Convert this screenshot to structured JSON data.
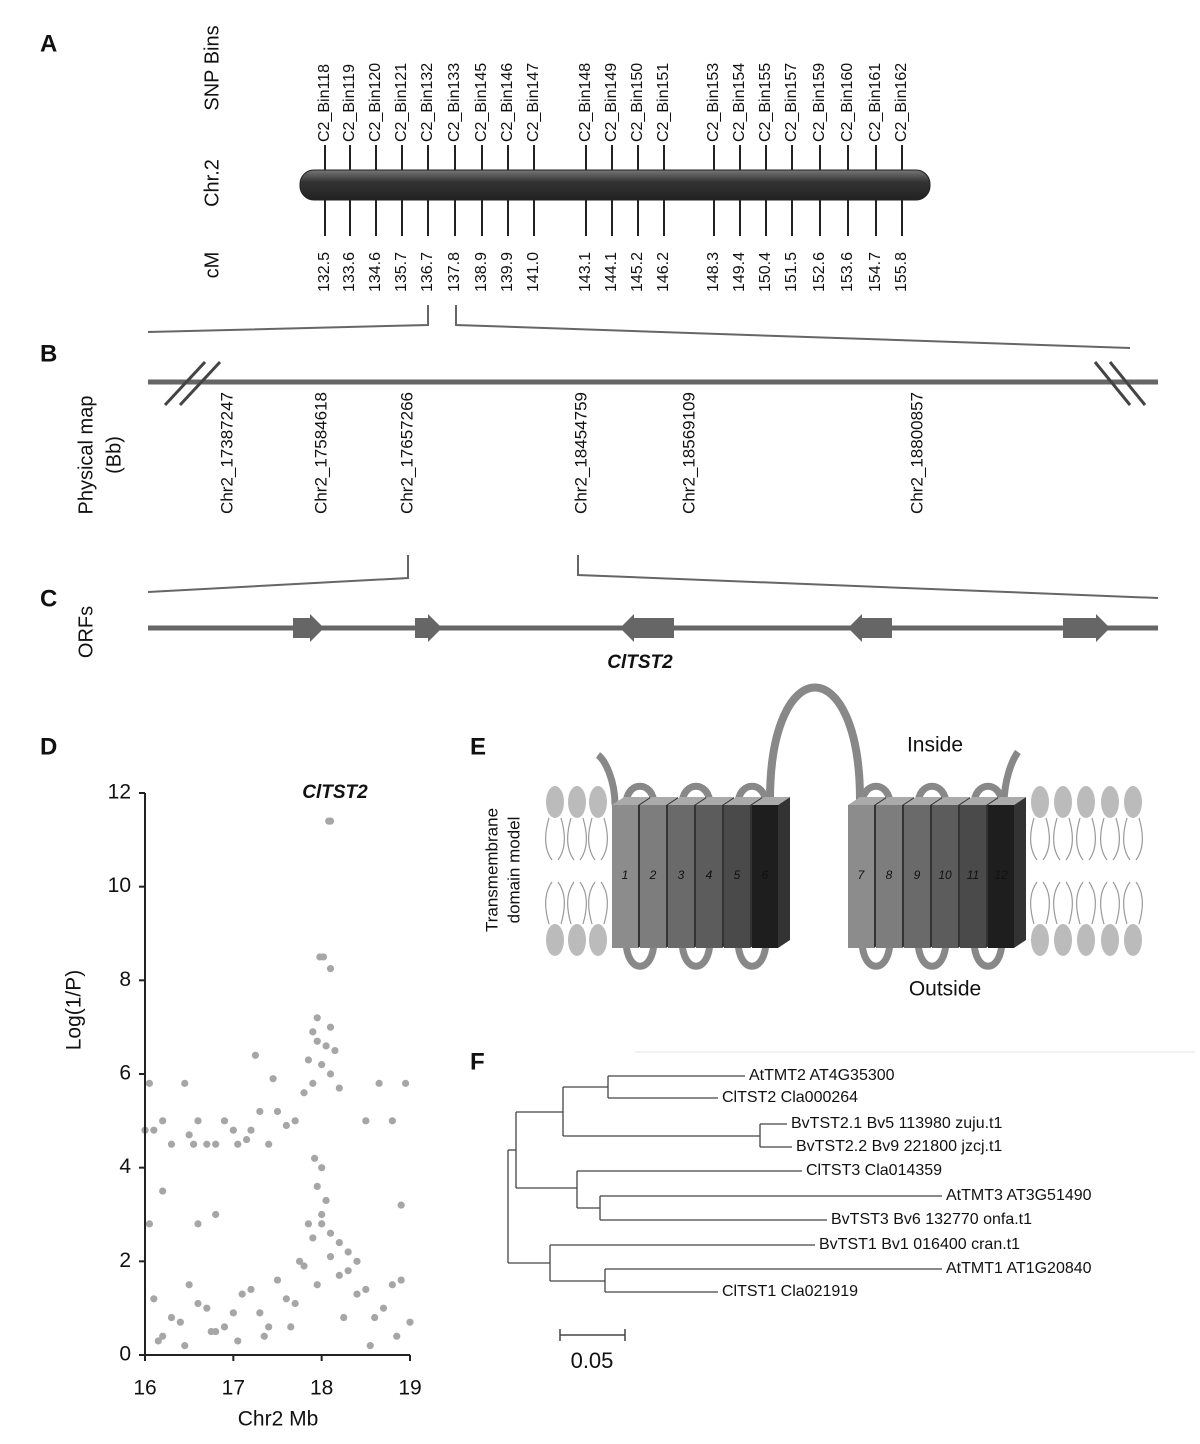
{
  "panel_a": {
    "label": "A",
    "chr_label": "Chr.2",
    "bins_title": "SNP Bins",
    "cm_title": "cM",
    "bins": [
      "C2_Bin118",
      "C2_Bin119",
      "C2_Bin120",
      "C2_Bin121",
      "C2_Bin132",
      "C2_Bin133",
      "C2_Bin145",
      "C2_Bin146",
      "C2_Bin147",
      "C2_Bin148",
      "C2_Bin149",
      "C2_Bin150",
      "C2_Bin151",
      "C2_Bin153",
      "C2_Bin154",
      "C2_Bin155",
      "C2_Bin157",
      "C2_Bin159",
      "C2_Bin160",
      "C2_Bin161",
      "C2_Bin162"
    ],
    "cm": [
      "132.5",
      "133.6",
      "134.6",
      "135.7",
      "136.7",
      "137.8",
      "138.9",
      "139.9",
      "141.0",
      "143.1",
      "144.1",
      "145.2",
      "146.2",
      "148.3",
      "149.4",
      "150.4",
      "151.5",
      "152.6",
      "153.6",
      "154.7",
      "155.8"
    ]
  },
  "panel_b": {
    "label": "B",
    "title_line1": "Physical map",
    "title_line2": "(Bb)",
    "markers": [
      "Chr2_17387247",
      "Chr2_17584618",
      "Chr2_17657266",
      "Chr2_18454759",
      "Chr2_18569109",
      "Chr2_18800857"
    ]
  },
  "panel_c": {
    "label": "C",
    "title": "ORFs",
    "gene": "ClTST2"
  },
  "chart_data": {
    "type": "scatter",
    "label": "D",
    "annotation": "ClTST2",
    "x_label": "Chr2 Mb",
    "y_label": "Log(1/P)",
    "color": "#a6a6a6",
    "xlim": [
      16,
      19
    ],
    "ylim": [
      0,
      12
    ],
    "xticks": [
      16,
      17,
      18,
      19
    ],
    "yticks": [
      0,
      2,
      4,
      6,
      8,
      10,
      12
    ],
    "x": [
      18.1,
      18.08,
      17.98,
      18.02,
      18.1,
      17.95,
      18.1,
      17.9,
      17.95,
      18.05,
      18.15,
      17.85,
      18.0,
      18.1,
      17.9,
      18.2,
      17.8,
      16.05,
      16.45,
      17.45,
      18.65,
      18.95,
      16.2,
      16.0,
      16.1,
      16.5,
      16.6,
      16.9,
      17.0,
      17.2,
      17.3,
      17.5,
      17.6,
      17.7,
      18.5,
      18.8,
      16.3,
      16.55,
      16.7,
      16.8,
      17.05,
      17.15,
      17.4,
      16.2,
      16.05,
      16.6,
      16.8,
      17.25,
      18.9,
      17.92,
      18.0,
      17.95,
      18.05,
      18.0,
      17.85,
      18.1,
      18.2,
      18.3,
      17.75,
      18.4,
      16.1,
      16.3,
      16.5,
      16.7,
      16.9,
      17.1,
      17.3,
      17.5,
      17.7,
      17.9,
      18.1,
      18.3,
      18.5,
      18.7,
      18.9,
      16.2,
      16.4,
      16.6,
      16.8,
      17.0,
      17.2,
      17.4,
      17.6,
      17.8,
      18.0,
      18.2,
      18.4,
      18.6,
      18.8,
      19.0,
      16.15,
      16.45,
      16.75,
      17.05,
      17.35,
      17.65,
      17.95,
      18.25,
      18.55,
      18.85
    ],
    "values": [
      11.4,
      11.4,
      8.5,
      8.5,
      8.25,
      7.2,
      7.0,
      6.9,
      6.7,
      6.6,
      6.5,
      6.3,
      6.2,
      6.0,
      5.8,
      5.7,
      5.6,
      5.8,
      5.8,
      5.9,
      5.8,
      5.8,
      5.0,
      4.8,
      4.8,
      4.7,
      5.0,
      5.0,
      4.8,
      4.8,
      5.2,
      5.2,
      4.9,
      5.0,
      5.0,
      5.0,
      4.5,
      4.5,
      4.5,
      4.5,
      4.5,
      4.6,
      4.5,
      3.5,
      2.8,
      2.8,
      3.0,
      6.4,
      3.2,
      4.2,
      4.0,
      3.6,
      3.3,
      3.0,
      2.8,
      2.6,
      2.4,
      2.2,
      2.0,
      2.0,
      1.2,
      0.8,
      1.5,
      1.0,
      0.6,
      1.3,
      0.9,
      1.6,
      1.1,
      2.5,
      2.1,
      1.8,
      1.4,
      1.0,
      1.6,
      0.4,
      0.7,
      1.1,
      0.5,
      0.9,
      1.4,
      0.6,
      1.2,
      1.9,
      2.8,
      1.7,
      1.3,
      0.8,
      1.5,
      0.7,
      0.3,
      0.2,
      0.5,
      0.3,
      0.4,
      0.6,
      1.5,
      0.8,
      0.2,
      0.4
    ]
  },
  "panel_e": {
    "label": "E",
    "title_line1": "Transmembrane",
    "title_line2": "domain model",
    "inside": "Inside",
    "outside": "Outside",
    "helices": [
      "1",
      "2",
      "3",
      "4",
      "5",
      "6",
      "7",
      "8",
      "9",
      "10",
      "11",
      "12"
    ]
  },
  "panel_f": {
    "label": "F",
    "scale_label": "0.05",
    "leaves": [
      "AtTMT2 AT4G35300",
      "ClTST2 Cla000264",
      "BvTST2.1 Bv5 113980 zuju.t1",
      "BvTST2.2 Bv9 221800 jzcj.t1",
      "ClTST3 Cla014359",
      "AtTMT3 AT3G51490",
      "BvTST3 Bv6 132770 onfa.t1",
      "BvTST1 Bv1 016400 cran.t1",
      "AtTMT1 AT1G20840",
      "ClTST1 Cla021919"
    ]
  }
}
